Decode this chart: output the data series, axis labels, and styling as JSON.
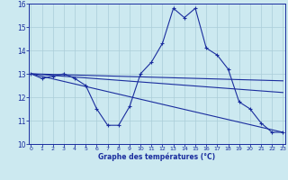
{
  "xlabel": "Graphe des températures (°C)",
  "background_color": "#cce9f0",
  "grid_color": "#aacdd8",
  "line_color": "#1a2d9e",
  "hours": [
    0,
    1,
    2,
    3,
    4,
    5,
    6,
    7,
    8,
    9,
    10,
    11,
    12,
    13,
    14,
    15,
    16,
    17,
    18,
    19,
    20,
    21,
    22,
    23
  ],
  "temp_main": [
    13.0,
    12.8,
    12.9,
    13.0,
    12.8,
    12.5,
    11.5,
    10.8,
    10.8,
    11.6,
    13.0,
    13.5,
    14.3,
    15.8,
    15.4,
    15.8,
    14.1,
    13.8,
    13.2,
    11.8,
    11.5,
    10.9,
    10.5,
    10.5
  ],
  "temp_line2_x": [
    0,
    23
  ],
  "temp_line2_y": [
    13.0,
    12.7
  ],
  "temp_line3_x": [
    0,
    23
  ],
  "temp_line3_y": [
    13.0,
    10.5
  ],
  "temp_line4_x": [
    0,
    23
  ],
  "temp_line4_y": [
    13.0,
    12.2
  ],
  "ylim": [
    10,
    16
  ],
  "xlim": [
    0,
    23
  ],
  "yticks": [
    10,
    11,
    12,
    13,
    14,
    15,
    16
  ],
  "xticks": [
    0,
    1,
    2,
    3,
    4,
    5,
    6,
    7,
    8,
    9,
    10,
    11,
    12,
    13,
    14,
    15,
    16,
    17,
    18,
    19,
    20,
    21,
    22,
    23
  ]
}
